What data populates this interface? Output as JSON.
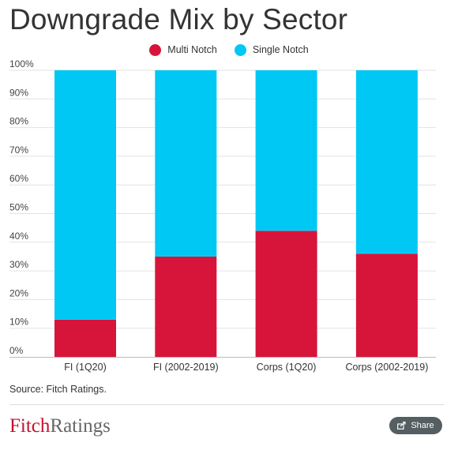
{
  "header": {
    "title": "Downgrade Mix by Sector"
  },
  "legend": {
    "items": [
      {
        "label": "Multi Notch",
        "color": "#d7143a"
      },
      {
        "label": "Single Notch",
        "color": "#00c8f5"
      }
    ]
  },
  "chart_data": {
    "type": "bar",
    "stacked": true,
    "categories": [
      "FI (1Q20)",
      "FI (2002-2019)",
      "Corps (1Q20)",
      "Corps (2002-2019)"
    ],
    "series": [
      {
        "name": "Multi Notch",
        "color": "#d7143a",
        "values": [
          13,
          35,
          44,
          36
        ]
      },
      {
        "name": "Single Notch",
        "color": "#00c8f5",
        "values": [
          87,
          65,
          56,
          64
        ]
      }
    ],
    "title": "Downgrade Mix by Sector",
    "xlabel": "",
    "ylabel": "",
    "ylim": [
      0,
      100
    ],
    "yticks": [
      "0%",
      "10%",
      "20%",
      "30%",
      "40%",
      "50%",
      "60%",
      "70%",
      "80%",
      "90%",
      "100%"
    ],
    "grid": true,
    "legend_position": "top-center"
  },
  "footer": {
    "source": "Source: Fitch Ratings.",
    "brand_a": "Fitch",
    "brand_b": "Ratings",
    "share_label": "Share"
  }
}
